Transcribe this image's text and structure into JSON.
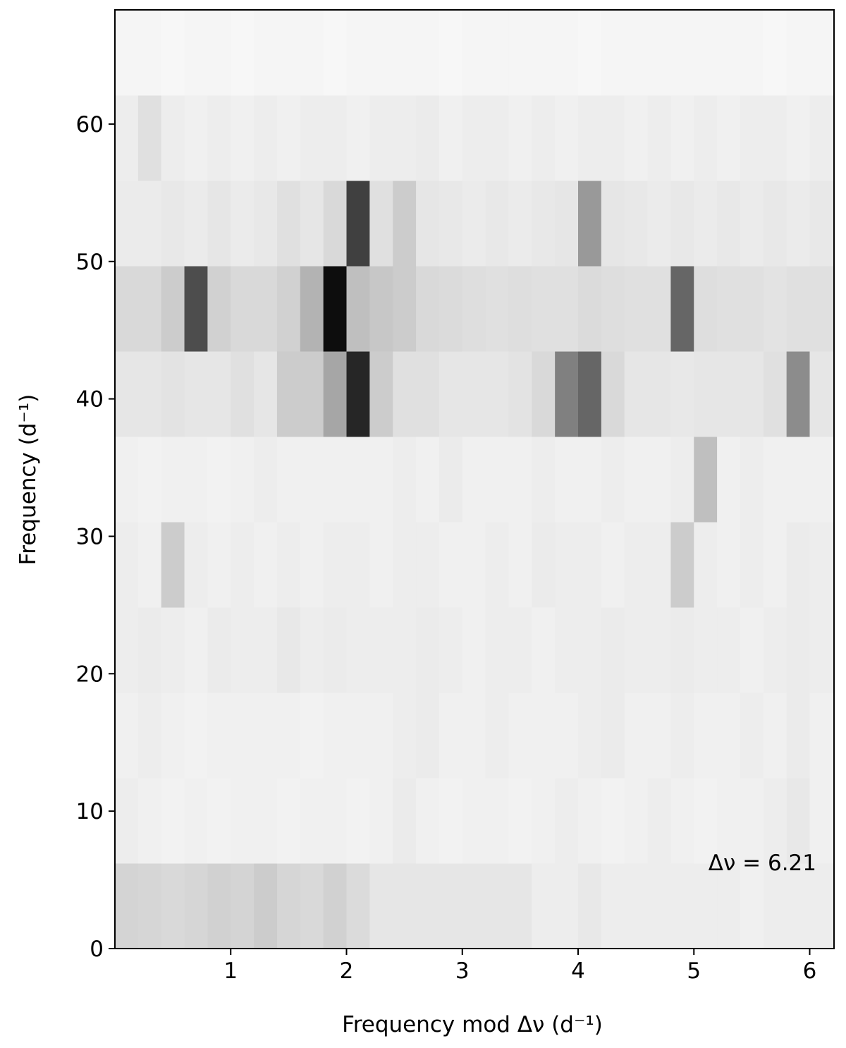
{
  "chart_data": {
    "type": "heatmap",
    "xlabel": "Frequency mod Δν (d⁻¹)",
    "ylabel": "Frequency (d⁻¹)",
    "annotation": "Δν = 6.21",
    "annotation_color": "#0000ff",
    "xlim": [
      0,
      6.21
    ],
    "ylim": [
      0,
      68.31
    ],
    "xticks": [
      1,
      2,
      3,
      4,
      5,
      6
    ],
    "yticks": [
      0,
      10,
      20,
      30,
      40,
      50,
      60
    ],
    "xbins": [
      0,
      0.2,
      0.4,
      0.6,
      0.8,
      1.0,
      1.2,
      1.4,
      1.6,
      1.8,
      2.0,
      2.2,
      2.4,
      2.6,
      2.8,
      3.0,
      3.2,
      3.4,
      3.6,
      3.8,
      4.0,
      4.2,
      4.4,
      4.6,
      4.8,
      5.0,
      5.2,
      5.4,
      5.6,
      5.8,
      6.0,
      6.21
    ],
    "ybins": [
      0,
      6.21,
      12.42,
      18.63,
      24.84,
      31.05,
      37.26,
      43.47,
      49.68,
      55.89,
      62.1,
      68.31
    ],
    "z": [
      [
        0.17,
        0.16,
        0.15,
        0.16,
        0.18,
        0.17,
        0.2,
        0.16,
        0.15,
        0.18,
        0.14,
        0.1,
        0.1,
        0.1,
        0.1,
        0.1,
        0.1,
        0.1,
        0.07,
        0.07,
        0.09,
        0.07,
        0.07,
        0.07,
        0.07,
        0.07,
        0.07,
        0.06,
        0.07,
        0.07,
        0.07
      ],
      [
        0.07,
        0.06,
        0.05,
        0.06,
        0.05,
        0.06,
        0.06,
        0.05,
        0.06,
        0.06,
        0.05,
        0.06,
        0.08,
        0.06,
        0.05,
        0.06,
        0.06,
        0.05,
        0.06,
        0.07,
        0.06,
        0.05,
        0.06,
        0.07,
        0.06,
        0.05,
        0.06,
        0.06,
        0.07,
        0.09,
        0.06
      ],
      [
        0.06,
        0.07,
        0.06,
        0.05,
        0.06,
        0.06,
        0.06,
        0.06,
        0.05,
        0.06,
        0.06,
        0.06,
        0.07,
        0.08,
        0.06,
        0.06,
        0.07,
        0.06,
        0.06,
        0.06,
        0.07,
        0.08,
        0.06,
        0.06,
        0.07,
        0.06,
        0.06,
        0.07,
        0.06,
        0.08,
        0.06
      ],
      [
        0.07,
        0.08,
        0.07,
        0.06,
        0.08,
        0.07,
        0.07,
        0.09,
        0.07,
        0.08,
        0.07,
        0.07,
        0.07,
        0.08,
        0.07,
        0.06,
        0.07,
        0.07,
        0.06,
        0.07,
        0.07,
        0.08,
        0.07,
        0.07,
        0.08,
        0.07,
        0.07,
        0.06,
        0.07,
        0.08,
        0.07
      ],
      [
        0.07,
        0.06,
        0.2,
        0.07,
        0.06,
        0.07,
        0.06,
        0.07,
        0.06,
        0.07,
        0.07,
        0.06,
        0.07,
        0.07,
        0.06,
        0.06,
        0.07,
        0.06,
        0.08,
        0.07,
        0.07,
        0.06,
        0.07,
        0.07,
        0.2,
        0.07,
        0.06,
        0.07,
        0.06,
        0.08,
        0.07
      ],
      [
        0.06,
        0.05,
        0.06,
        0.06,
        0.05,
        0.06,
        0.07,
        0.06,
        0.06,
        0.06,
        0.06,
        0.06,
        0.07,
        0.06,
        0.08,
        0.06,
        0.06,
        0.06,
        0.07,
        0.06,
        0.06,
        0.07,
        0.06,
        0.06,
        0.07,
        0.25,
        0.06,
        0.07,
        0.06,
        0.06,
        0.06
      ],
      [
        0.1,
        0.1,
        0.11,
        0.1,
        0.1,
        0.12,
        0.1,
        0.2,
        0.2,
        0.35,
        0.85,
        0.2,
        0.12,
        0.12,
        0.1,
        0.1,
        0.1,
        0.11,
        0.15,
        0.5,
        0.6,
        0.15,
        0.1,
        0.1,
        0.09,
        0.1,
        0.1,
        0.1,
        0.12,
        0.45,
        0.1
      ],
      [
        0.15,
        0.15,
        0.2,
        0.7,
        0.18,
        0.15,
        0.15,
        0.18,
        0.3,
        0.95,
        0.25,
        0.22,
        0.2,
        0.15,
        0.14,
        0.13,
        0.12,
        0.13,
        0.12,
        0.12,
        0.14,
        0.13,
        0.12,
        0.12,
        0.6,
        0.13,
        0.12,
        0.12,
        0.11,
        0.12,
        0.12
      ],
      [
        0.08,
        0.08,
        0.09,
        0.08,
        0.1,
        0.08,
        0.09,
        0.12,
        0.1,
        0.15,
        0.75,
        0.12,
        0.2,
        0.1,
        0.09,
        0.08,
        0.09,
        0.08,
        0.09,
        0.1,
        0.4,
        0.1,
        0.09,
        0.08,
        0.09,
        0.08,
        0.09,
        0.08,
        0.09,
        0.08,
        0.09
      ],
      [
        0.07,
        0.12,
        0.07,
        0.06,
        0.07,
        0.06,
        0.07,
        0.06,
        0.07,
        0.07,
        0.06,
        0.07,
        0.07,
        0.08,
        0.06,
        0.07,
        0.07,
        0.06,
        0.07,
        0.06,
        0.07,
        0.07,
        0.06,
        0.07,
        0.06,
        0.07,
        0.06,
        0.07,
        0.07,
        0.06,
        0.07
      ],
      [
        0.04,
        0.04,
        0.03,
        0.04,
        0.04,
        0.03,
        0.04,
        0.04,
        0.04,
        0.03,
        0.04,
        0.04,
        0.04,
        0.04,
        0.03,
        0.04,
        0.04,
        0.04,
        0.04,
        0.04,
        0.03,
        0.04,
        0.04,
        0.04,
        0.04,
        0.04,
        0.04,
        0.04,
        0.03,
        0.04,
        0.04
      ]
    ]
  }
}
